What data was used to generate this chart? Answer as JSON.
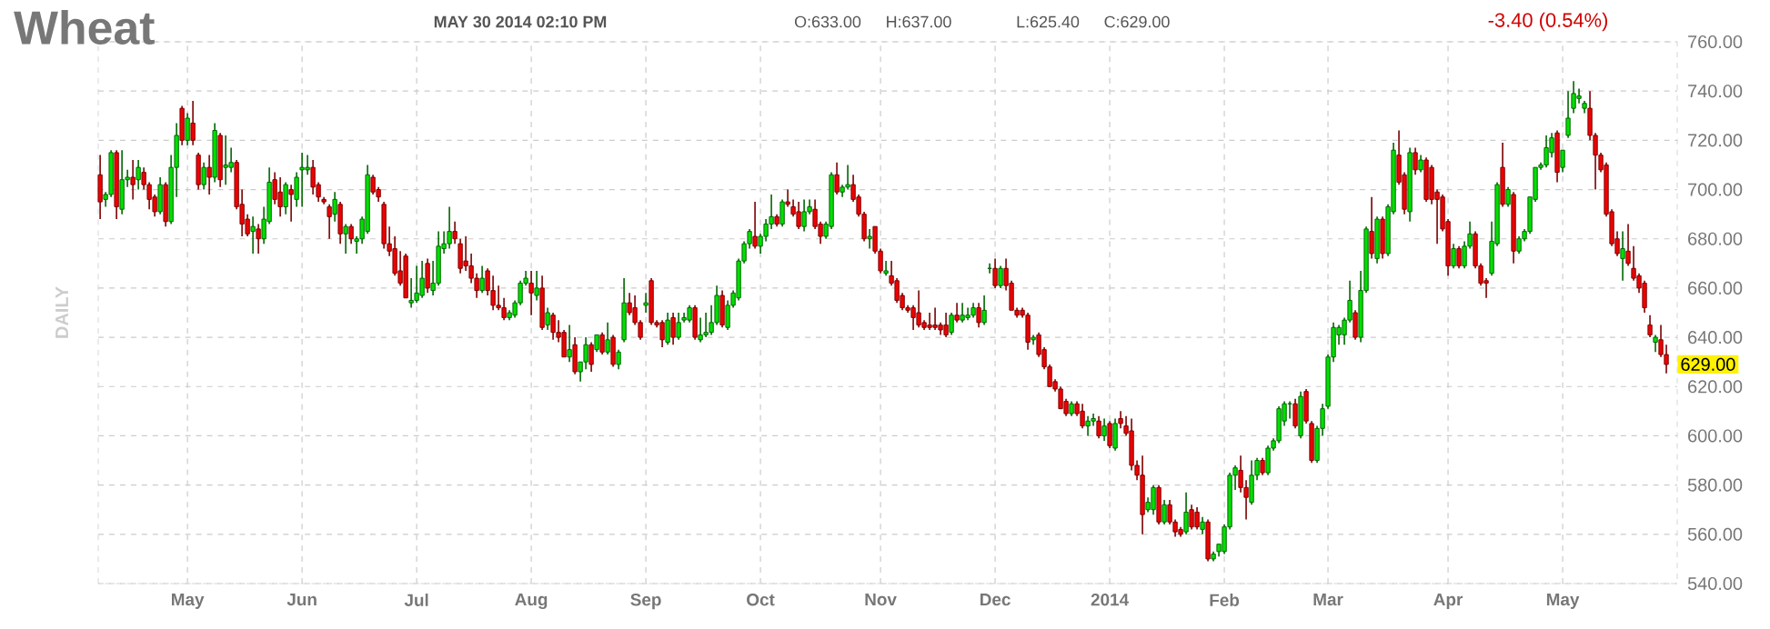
{
  "chart_data": {
    "type": "candlestick",
    "title": "Wheat",
    "subtitle": "MAY 30 2014 02:10 PM",
    "ylabel": "DAILY",
    "annotations": [
      "O:633.00",
      "H:637.00",
      "L:625.40",
      "C:629.00",
      "-3.40 (0.54%)",
      {
        "text": "629.00",
        "y": 629
      }
    ],
    "categories": [
      null,
      null,
      null,
      null,
      null,
      null,
      null,
      null,
      null,
      null,
      null,
      null,
      null,
      null,
      null,
      null,
      "May",
      null,
      null,
      null,
      null,
      null,
      null,
      null,
      null,
      null,
      null,
      null,
      null,
      null,
      null,
      null,
      null,
      null,
      null,
      null,
      null,
      "Jun",
      null,
      null,
      null,
      null,
      null,
      null,
      null,
      null,
      null,
      null,
      null,
      null,
      null,
      null,
      null,
      null,
      null,
      null,
      null,
      null,
      "Jul",
      null,
      null,
      null,
      null,
      null,
      null,
      null,
      null,
      null,
      null,
      null,
      null,
      null,
      null,
      null,
      null,
      null,
      null,
      null,
      null,
      "Aug",
      null,
      null,
      null,
      null,
      null,
      null,
      null,
      null,
      null,
      null,
      null,
      null,
      null,
      null,
      null,
      null,
      null,
      null,
      null,
      null,
      "Sep",
      null,
      null,
      null,
      null,
      null,
      null,
      null,
      null,
      null,
      null,
      null,
      null,
      null,
      null,
      null,
      null,
      null,
      null,
      null,
      null,
      "Oct",
      null,
      null,
      null,
      null,
      null,
      null,
      null,
      null,
      null,
      null,
      null,
      null,
      null,
      null,
      null,
      null,
      null,
      null,
      null,
      null,
      null,
      "Nov",
      null,
      null,
      null,
      null,
      null,
      null,
      null,
      null,
      null,
      null,
      null,
      null,
      null,
      null,
      null,
      null,
      null,
      null,
      null,
      null,
      "Dec",
      null,
      null,
      null,
      null,
      null,
      null,
      null,
      null,
      null,
      null,
      null,
      null,
      null,
      null,
      null,
      null,
      null,
      null,
      null,
      null,
      "2014",
      null,
      null,
      null,
      null,
      null,
      null,
      null,
      null,
      null,
      null,
      null,
      null,
      null,
      null,
      null,
      null,
      null,
      null,
      null,
      null,
      "Feb",
      null,
      null,
      null,
      null,
      null,
      null,
      null,
      null,
      null,
      null,
      null,
      null,
      null,
      null,
      null,
      null,
      null,
      null,
      "Mar",
      null,
      null,
      null,
      null,
      null,
      null,
      null,
      null,
      null,
      null,
      null,
      null,
      null,
      null,
      null,
      null,
      null,
      null,
      null,
      null,
      null,
      "Apr",
      null,
      null,
      null,
      null,
      null,
      null,
      null,
      null,
      null,
      null,
      null,
      null,
      null,
      null,
      null,
      null,
      null,
      null,
      null,
      null,
      "May",
      null,
      null,
      null,
      null,
      null,
      null,
      null,
      null,
      null,
      null,
      null,
      null,
      null,
      null,
      null,
      null,
      null,
      null,
      null
    ],
    "ohlc": [
      [
        706,
        714,
        688,
        695
      ],
      [
        696,
        699,
        693,
        698
      ],
      [
        698,
        716,
        697,
        715
      ],
      [
        715,
        716,
        688,
        693
      ],
      [
        692,
        716,
        690,
        704
      ],
      [
        704,
        708,
        701,
        705
      ],
      [
        705,
        712,
        696,
        702
      ],
      [
        704,
        712,
        700,
        709
      ],
      [
        707,
        709,
        700,
        702
      ],
      [
        702,
        703,
        692,
        696
      ],
      [
        697,
        698,
        689,
        691
      ],
      [
        691,
        705,
        690,
        702
      ],
      [
        702,
        703,
        685,
        687
      ],
      [
        687,
        714,
        686,
        709
      ],
      [
        709,
        727,
        697,
        722
      ],
      [
        733,
        734,
        718,
        720
      ],
      [
        720,
        731,
        718,
        729
      ],
      [
        727,
        736,
        718,
        720
      ],
      [
        714,
        715,
        700,
        702
      ],
      [
        702,
        711,
        700,
        709
      ],
      [
        709,
        714,
        698,
        705
      ],
      [
        705,
        727,
        703,
        724
      ],
      [
        722,
        723,
        701,
        704
      ],
      [
        709,
        722,
        702,
        710
      ],
      [
        709,
        717,
        707,
        711
      ],
      [
        711,
        712,
        692,
        693
      ],
      [
        694,
        700,
        681,
        686
      ],
      [
        688,
        690,
        681,
        682
      ],
      [
        683,
        689,
        674,
        685
      ],
      [
        684,
        686,
        674,
        680
      ],
      [
        680,
        693,
        678,
        688
      ],
      [
        687,
        709,
        686,
        703
      ],
      [
        704,
        707,
        694,
        696
      ],
      [
        699,
        705,
        689,
        693
      ],
      [
        693,
        703,
        690,
        702
      ],
      [
        700,
        702,
        687,
        698
      ],
      [
        696,
        707,
        693,
        705
      ],
      [
        708,
        715,
        693,
        709
      ],
      [
        708,
        714,
        706,
        709
      ],
      [
        709,
        712,
        698,
        701
      ],
      [
        702,
        703,
        695,
        697
      ],
      [
        696,
        697,
        694,
        695
      ],
      [
        693,
        694,
        680,
        689
      ],
      [
        690,
        699,
        687,
        696
      ],
      [
        694,
        695,
        678,
        682
      ],
      [
        682,
        686,
        674,
        685
      ],
      [
        685,
        686,
        678,
        680
      ],
      [
        679,
        681,
        674,
        680
      ],
      [
        680,
        689,
        678,
        688
      ],
      [
        683,
        710,
        682,
        706
      ],
      [
        705,
        706,
        698,
        699
      ],
      [
        700,
        701,
        695,
        697
      ],
      [
        694,
        695,
        676,
        678
      ],
      [
        678,
        685,
        673,
        675
      ],
      [
        676,
        681,
        665,
        666
      ],
      [
        667,
        675,
        661,
        662
      ],
      [
        673,
        674,
        656,
        656
      ],
      [
        654,
        664,
        652,
        655
      ],
      [
        655,
        669,
        654,
        658
      ],
      [
        657,
        671,
        656,
        664
      ],
      [
        670,
        672,
        658,
        660
      ],
      [
        659,
        671,
        657,
        662
      ],
      [
        662,
        683,
        661,
        677
      ],
      [
        676,
        683,
        674,
        678
      ],
      [
        678,
        693,
        676,
        683
      ],
      [
        683,
        687,
        678,
        680
      ],
      [
        678,
        680,
        666,
        668
      ],
      [
        671,
        681,
        667,
        669
      ],
      [
        669,
        674,
        662,
        664
      ],
      [
        664,
        666,
        656,
        659
      ],
      [
        659,
        669,
        658,
        664
      ],
      [
        667,
        668,
        657,
        659
      ],
      [
        659,
        665,
        651,
        653
      ],
      [
        653,
        661,
        651,
        652
      ],
      [
        652,
        656,
        647,
        648
      ],
      [
        648,
        651,
        647,
        650
      ],
      [
        649,
        655,
        648,
        654
      ],
      [
        654,
        663,
        653,
        662
      ],
      [
        662,
        667,
        661,
        664
      ],
      [
        662,
        667,
        649,
        658
      ],
      [
        657,
        667,
        655,
        660
      ],
      [
        660,
        665,
        643,
        644
      ],
      [
        645,
        652,
        643,
        650
      ],
      [
        649,
        650,
        639,
        642
      ],
      [
        642,
        647,
        638,
        640
      ],
      [
        642,
        643,
        632,
        632
      ],
      [
        632,
        645,
        630,
        635
      ],
      [
        637,
        640,
        625,
        626
      ],
      [
        626,
        630,
        622,
        630
      ],
      [
        630,
        640,
        627,
        637
      ],
      [
        637,
        638,
        626,
        629
      ],
      [
        635,
        641,
        634,
        641
      ],
      [
        641,
        642,
        633,
        634
      ],
      [
        634,
        646,
        633,
        639
      ],
      [
        640,
        641,
        628,
        629
      ],
      [
        629,
        635,
        627,
        634
      ],
      [
        639,
        664,
        638,
        654
      ],
      [
        654,
        658,
        649,
        650
      ],
      [
        652,
        657,
        645,
        646
      ],
      [
        646,
        647,
        639,
        640
      ],
      [
        653,
        658,
        650,
        654
      ],
      [
        663,
        664,
        645,
        646
      ],
      [
        646,
        647,
        644,
        645
      ],
      [
        646,
        647,
        636,
        639
      ],
      [
        638,
        650,
        637,
        647
      ],
      [
        648,
        650,
        637,
        640
      ],
      [
        640,
        650,
        639,
        646
      ],
      [
        647,
        650,
        646,
        648
      ],
      [
        647,
        653,
        646,
        652
      ],
      [
        652,
        653,
        639,
        640
      ],
      [
        639,
        648,
        638,
        641
      ],
      [
        641,
        650,
        640,
        642
      ],
      [
        642,
        653,
        641,
        646
      ],
      [
        646,
        661,
        645,
        657
      ],
      [
        657,
        659,
        644,
        645
      ],
      [
        644,
        655,
        643,
        653
      ],
      [
        653,
        659,
        652,
        658
      ],
      [
        656,
        672,
        655,
        671
      ],
      [
        671,
        679,
        670,
        678
      ],
      [
        678,
        684,
        676,
        683
      ],
      [
        681,
        695,
        676,
        677
      ],
      [
        677,
        682,
        674,
        681
      ],
      [
        681,
        688,
        679,
        686
      ],
      [
        686,
        698,
        684,
        689
      ],
      [
        689,
        690,
        685,
        686
      ],
      [
        686,
        696,
        685,
        695
      ],
      [
        695,
        700,
        693,
        694
      ],
      [
        693,
        696,
        689,
        690
      ],
      [
        691,
        695,
        684,
        685
      ],
      [
        685,
        696,
        683,
        691
      ],
      [
        691,
        696,
        690,
        693
      ],
      [
        692,
        696,
        684,
        685
      ],
      [
        686,
        687,
        678,
        681
      ],
      [
        681,
        687,
        680,
        686
      ],
      [
        685,
        707,
        684,
        706
      ],
      [
        706,
        711,
        698,
        699
      ],
      [
        699,
        702,
        697,
        701
      ],
      [
        701,
        710,
        700,
        702
      ],
      [
        702,
        706,
        695,
        696
      ],
      [
        697,
        698,
        689,
        690
      ],
      [
        690,
        691,
        679,
        680
      ],
      [
        680,
        684,
        676,
        681
      ],
      [
        685,
        685,
        674,
        675
      ],
      [
        675,
        676,
        666,
        667
      ],
      [
        666,
        671,
        665,
        667
      ],
      [
        665,
        671,
        661,
        662
      ],
      [
        663,
        664,
        654,
        655
      ],
      [
        657,
        658,
        651,
        652
      ],
      [
        652,
        653,
        650,
        651
      ],
      [
        652,
        653,
        643,
        648
      ],
      [
        650,
        659,
        644,
        645
      ],
      [
        646,
        647,
        643,
        644
      ],
      [
        645,
        650,
        643,
        644
      ],
      [
        645,
        652,
        643,
        644
      ],
      [
        645,
        646,
        641,
        643
      ],
      [
        645,
        650,
        640,
        641
      ],
      [
        642,
        650,
        641,
        649
      ],
      [
        649,
        654,
        646,
        647
      ],
      [
        647,
        654,
        646,
        649
      ],
      [
        648,
        652,
        647,
        649
      ],
      [
        649,
        654,
        648,
        652
      ],
      [
        652,
        654,
        644,
        646
      ],
      [
        646,
        657,
        645,
        651
      ],
      [
        668,
        670,
        666,
        668
      ],
      [
        668,
        672,
        660,
        661
      ],
      [
        661,
        669,
        660,
        668
      ],
      [
        668,
        672,
        659,
        661
      ],
      [
        662,
        663,
        651,
        651
      ],
      [
        651,
        652,
        648,
        649
      ],
      [
        651,
        652,
        648,
        649
      ],
      [
        649,
        650,
        635,
        638
      ],
      [
        639,
        641,
        637,
        640
      ],
      [
        641,
        642,
        632,
        633
      ],
      [
        635,
        636,
        627,
        628
      ],
      [
        628,
        629,
        620,
        620
      ],
      [
        622,
        623,
        618,
        619
      ],
      [
        619,
        620,
        611,
        611
      ],
      [
        614,
        615,
        608,
        609
      ],
      [
        609,
        614,
        608,
        613
      ],
      [
        613,
        614,
        608,
        609
      ],
      [
        610,
        613,
        603,
        604
      ],
      [
        604,
        608,
        600,
        606
      ],
      [
        606,
        609,
        604,
        607
      ],
      [
        606,
        608,
        599,
        600
      ],
      [
        600,
        607,
        598,
        604
      ],
      [
        605,
        606,
        595,
        596
      ],
      [
        595,
        607,
        594,
        605
      ],
      [
        607,
        610,
        603,
        605
      ],
      [
        604,
        608,
        600,
        601
      ],
      [
        602,
        607,
        586,
        588
      ],
      [
        588,
        590,
        582,
        584
      ],
      [
        584,
        592,
        560,
        568
      ],
      [
        570,
        575,
        569,
        573
      ],
      [
        570,
        580,
        568,
        579
      ],
      [
        579,
        580,
        564,
        565
      ],
      [
        565,
        574,
        564,
        572
      ],
      [
        572,
        574,
        564,
        565
      ],
      [
        565,
        566,
        559,
        561
      ],
      [
        562,
        563,
        559,
        560
      ],
      [
        561,
        577,
        560,
        569
      ],
      [
        570,
        572,
        562,
        563
      ],
      [
        569,
        571,
        562,
        563
      ],
      [
        562,
        567,
        560,
        565
      ],
      [
        565,
        566,
        549,
        550
      ],
      [
        550,
        553,
        549,
        552
      ],
      [
        553,
        556,
        551,
        556
      ],
      [
        553,
        564,
        552,
        563
      ],
      [
        563,
        585,
        562,
        584
      ],
      [
        584,
        588,
        578,
        587
      ],
      [
        586,
        592,
        577,
        579
      ],
      [
        579,
        582,
        566,
        575
      ],
      [
        573,
        590,
        572,
        584
      ],
      [
        584,
        591,
        582,
        590
      ],
      [
        590,
        591,
        584,
        585
      ],
      [
        585,
        596,
        584,
        595
      ],
      [
        595,
        599,
        594,
        598
      ],
      [
        598,
        612,
        597,
        611
      ],
      [
        606,
        614,
        604,
        613
      ],
      [
        613,
        614,
        607,
        613
      ],
      [
        613,
        615,
        603,
        604
      ],
      [
        600,
        618,
        599,
        616
      ],
      [
        618,
        619,
        605,
        606
      ],
      [
        605,
        606,
        589,
        590
      ],
      [
        590,
        604,
        589,
        603
      ],
      [
        603,
        613,
        600,
        611
      ],
      [
        612,
        633,
        611,
        632
      ],
      [
        632,
        646,
        630,
        644
      ],
      [
        641,
        645,
        637,
        644
      ],
      [
        641,
        648,
        637,
        647
      ],
      [
        647,
        663,
        646,
        655
      ],
      [
        650,
        651,
        639,
        640
      ],
      [
        640,
        667,
        638,
        659
      ],
      [
        659,
        685,
        658,
        684
      ],
      [
        683,
        697,
        672,
        674
      ],
      [
        672,
        689,
        670,
        688
      ],
      [
        688,
        689,
        672,
        674
      ],
      [
        674,
        694,
        673,
        693
      ],
      [
        691,
        719,
        690,
        716
      ],
      [
        714,
        724,
        702,
        703
      ],
      [
        706,
        707,
        690,
        692
      ],
      [
        691,
        717,
        687,
        715
      ],
      [
        715,
        717,
        706,
        708
      ],
      [
        708,
        714,
        707,
        712
      ],
      [
        712,
        713,
        695,
        696
      ],
      [
        709,
        710,
        694,
        696
      ],
      [
        699,
        700,
        678,
        696
      ],
      [
        697,
        698,
        683,
        684
      ],
      [
        687,
        688,
        665,
        669
      ],
      [
        669,
        678,
        668,
        676
      ],
      [
        676,
        677,
        668,
        669
      ],
      [
        669,
        679,
        668,
        677
      ],
      [
        677,
        687,
        676,
        682
      ],
      [
        682,
        683,
        668,
        669
      ],
      [
        669,
        670,
        661,
        662
      ],
      [
        663,
        664,
        656,
        662
      ],
      [
        666,
        687,
        665,
        679
      ],
      [
        678,
        703,
        677,
        702
      ],
      [
        709,
        719,
        693,
        694
      ],
      [
        694,
        701,
        693,
        700
      ],
      [
        698,
        699,
        670,
        675
      ],
      [
        675,
        681,
        674,
        680
      ],
      [
        680,
        684,
        679,
        683
      ],
      [
        683,
        697,
        682,
        697
      ],
      [
        696,
        709,
        695,
        709
      ],
      [
        709,
        711,
        708,
        710
      ],
      [
        710,
        722,
        709,
        717
      ],
      [
        715,
        723,
        713,
        721
      ],
      [
        723,
        724,
        703,
        707
      ],
      [
        709,
        716,
        707,
        716
      ],
      [
        722,
        740,
        721,
        729
      ],
      [
        733,
        744,
        731,
        739
      ],
      [
        737,
        741,
        735,
        738
      ],
      [
        733,
        736,
        731,
        735
      ],
      [
        733,
        740,
        720,
        722
      ],
      [
        722,
        723,
        700,
        714
      ],
      [
        714,
        715,
        707,
        708
      ],
      [
        710,
        711,
        689,
        690
      ],
      [
        691,
        692,
        677,
        678
      ],
      [
        680,
        683,
        673,
        674
      ],
      [
        672,
        683,
        663,
        676
      ],
      [
        675,
        686,
        669,
        670
      ],
      [
        668,
        677,
        663,
        664
      ],
      [
        665,
        666,
        658,
        660
      ],
      [
        662,
        663,
        650,
        652
      ],
      [
        645,
        649,
        640,
        641
      ],
      [
        638,
        641,
        634,
        640
      ],
      [
        639,
        645,
        632,
        633
      ],
      [
        633,
        637,
        625.4,
        629
      ]
    ],
    "ylim": [
      540,
      760
    ],
    "yticks": [
      {
        "value": 540,
        "label": "540.00"
      },
      {
        "value": 560,
        "label": "560.00"
      },
      {
        "value": 580,
        "label": "580.00"
      },
      {
        "value": 600,
        "label": "600.00"
      },
      {
        "value": 620,
        "label": "620.00"
      },
      {
        "value": 640,
        "label": "640.00"
      },
      {
        "value": 660,
        "label": "660.00"
      },
      {
        "value": 680,
        "label": "680.00"
      },
      {
        "value": 700,
        "label": "700.00"
      },
      {
        "value": 720,
        "label": "720.00"
      },
      {
        "value": 740,
        "label": "740.00"
      },
      {
        "value": 760,
        "label": "760.00"
      }
    ],
    "grid": true
  }
}
